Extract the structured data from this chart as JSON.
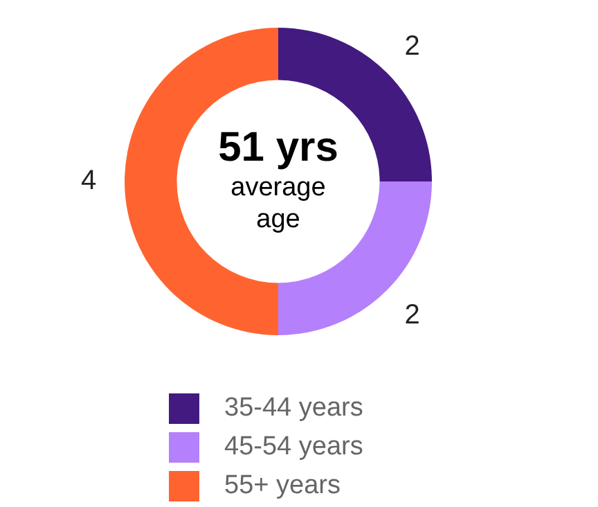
{
  "chart_data": {
    "type": "donut",
    "categories": [
      "35-44 years",
      "45-54 years",
      "55+ years"
    ],
    "values": [
      2,
      2,
      4
    ],
    "colors": [
      "#431a80",
      "#b580fc",
      "#ff6430"
    ],
    "data_labels": true,
    "legend": "bottom",
    "annotations": [
      "51 yrs",
      "average age"
    ]
  }
}
